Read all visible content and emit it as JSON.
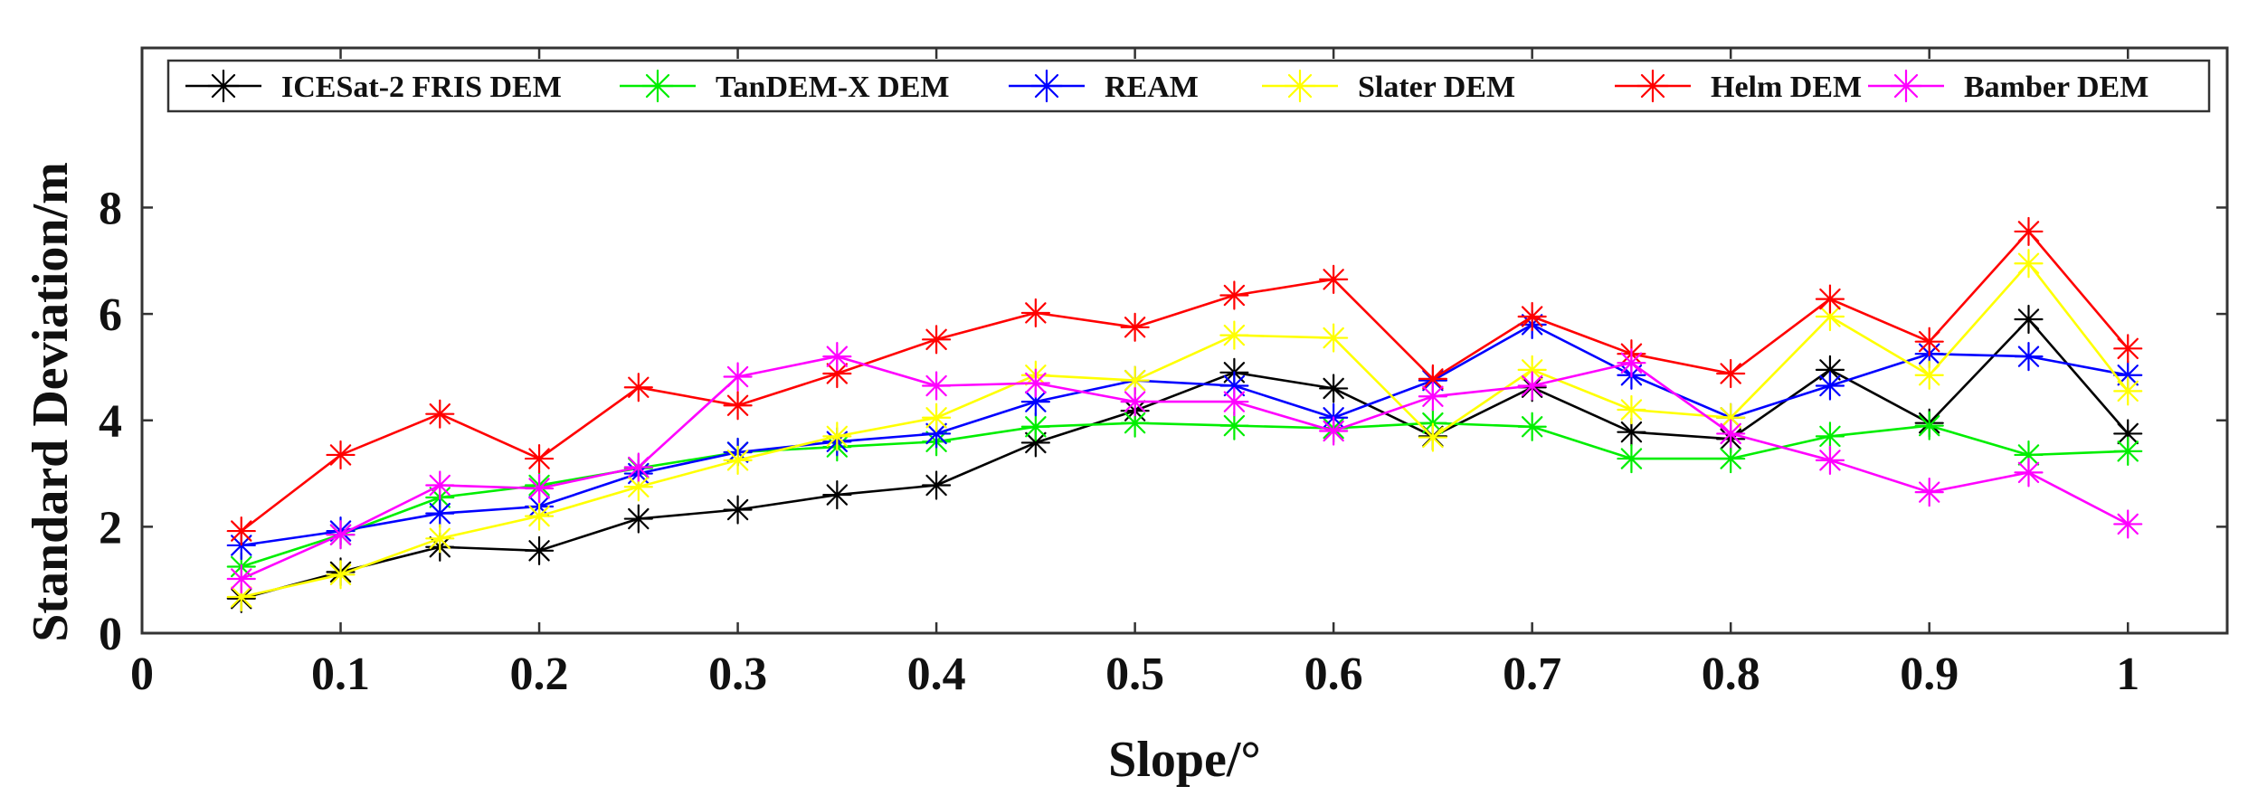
{
  "chart_data": {
    "type": "line",
    "title": "",
    "xlabel": "Slope/°",
    "ylabel": "Standard Deviation/m",
    "xlim": [
      0,
      1.05
    ],
    "ylim": [
      0,
      11
    ],
    "xticks": [
      0,
      0.1,
      0.2,
      0.3,
      0.4,
      0.5,
      0.6,
      0.7,
      0.8,
      0.9,
      1
    ],
    "xtick_labels": [
      "0",
      "0.1",
      "0.2",
      "0.3",
      "0.4",
      "0.5",
      "0.6",
      "0.7",
      "0.8",
      "0.9",
      "1"
    ],
    "yticks": [
      0,
      2,
      4,
      6,
      8
    ],
    "ytick_labels": [
      "0",
      "2",
      "4",
      "6",
      "8"
    ],
    "grid": false,
    "legend_position": "top",
    "marker": "asterisk",
    "x": [
      0.05,
      0.1,
      0.15,
      0.2,
      0.25,
      0.3,
      0.35,
      0.4,
      0.45,
      0.5,
      0.55,
      0.6,
      0.65,
      0.7,
      0.75,
      0.8,
      0.85,
      0.9,
      0.95,
      1.0
    ],
    "series": [
      {
        "name": "ICESat-2 FRIS DEM",
        "color": "#000000",
        "values": [
          0.65,
          1.15,
          1.62,
          1.55,
          2.15,
          2.32,
          2.6,
          2.78,
          3.58,
          4.18,
          4.9,
          4.6,
          3.7,
          4.62,
          3.78,
          3.65,
          4.95,
          3.95,
          5.9,
          3.75
        ]
      },
      {
        "name": "TanDEM-X DEM",
        "color": "#00ee00",
        "values": [
          1.25,
          1.85,
          2.55,
          2.78,
          3.1,
          3.4,
          3.5,
          3.6,
          3.88,
          3.95,
          3.9,
          3.85,
          3.95,
          3.88,
          3.28,
          3.28,
          3.7,
          3.9,
          3.35,
          3.42
        ]
      },
      {
        "name": "REAM",
        "color": "#0000ff",
        "values": [
          1.65,
          1.92,
          2.25,
          2.38,
          3.0,
          3.4,
          3.6,
          3.75,
          4.35,
          4.75,
          4.65,
          4.05,
          4.75,
          5.8,
          4.85,
          4.05,
          4.65,
          5.25,
          5.2,
          4.85
        ]
      },
      {
        "name": "Slater DEM",
        "color": "#ffff00",
        "values": [
          0.68,
          1.1,
          1.78,
          2.2,
          2.75,
          3.25,
          3.7,
          4.05,
          4.85,
          4.75,
          5.6,
          5.55,
          3.68,
          4.95,
          4.2,
          4.05,
          5.95,
          4.85,
          6.95,
          4.55
        ]
      },
      {
        "name": "Helm DEM",
        "color": "#ff0000",
        "values": [
          1.92,
          3.35,
          4.12,
          3.28,
          4.62,
          4.28,
          4.88,
          5.52,
          6.02,
          5.75,
          6.35,
          6.65,
          4.78,
          5.95,
          5.25,
          4.88,
          6.28,
          5.48,
          7.55,
          5.35
        ]
      },
      {
        "name": "Bamber DEM",
        "color": "#ff00ff",
        "values": [
          1.02,
          1.85,
          2.78,
          2.72,
          3.12,
          4.82,
          5.2,
          4.65,
          4.7,
          4.35,
          4.35,
          3.8,
          4.45,
          4.65,
          5.08,
          3.75,
          3.25,
          2.65,
          3.02,
          2.05
        ]
      }
    ]
  }
}
